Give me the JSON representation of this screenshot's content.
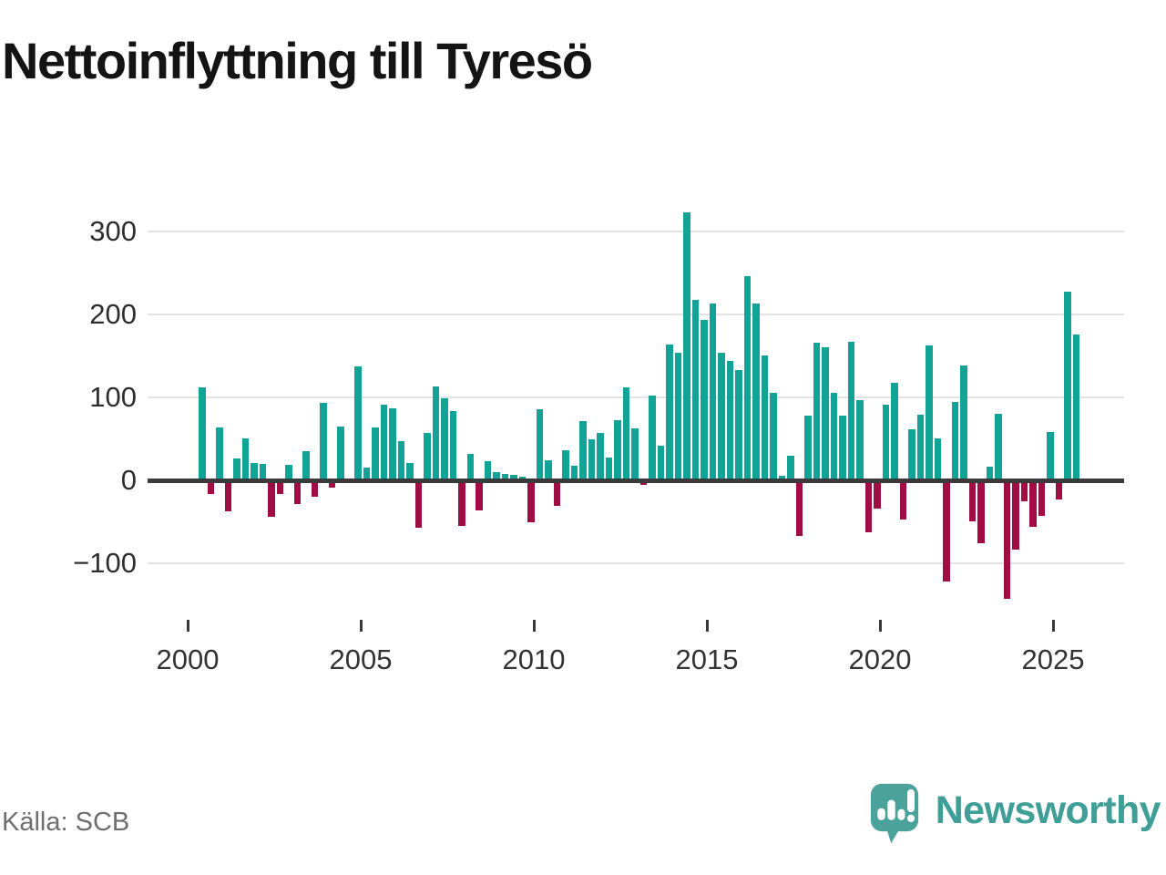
{
  "title": "Nettoinflyttning till Tyresö",
  "source": {
    "text": "Källa: SCB"
  },
  "branding": {
    "name": "Newsworthy"
  },
  "colors": {
    "positive_bar": "#10A396",
    "negative_bar": "#A00D45",
    "axis": "#3A3A3A",
    "grid": "#E3E3E3",
    "title": "#141414",
    "tick_label": "#333333",
    "y_label": "#2E2E2E",
    "source_text": "#6E6E6E",
    "brand_teal": "#3F9E96",
    "brand_icon_teal": "#4AA29B"
  },
  "chart_data": {
    "type": "bar",
    "title": "Nettoinflyttning till Tyresö",
    "xlabel": "",
    "ylabel": "",
    "grid": true,
    "legend": false,
    "x_ticks": [
      2000,
      2005,
      2010,
      2015,
      2020,
      2025
    ],
    "x_tick_labels": [
      "2000",
      "2005",
      "2010",
      "2015",
      "2020",
      "2025"
    ],
    "y_ticks": [
      300,
      200,
      100,
      0,
      -100
    ],
    "y_tick_labels": [
      "300",
      "200",
      "100",
      "0",
      "−100"
    ],
    "ylim": [
      -160,
      345
    ],
    "point_format": [
      "quarter",
      "value"
    ],
    "points": [
      [
        "2000 Q2",
        112
      ],
      [
        "2000 Q3",
        -17
      ],
      [
        "2000 Q4",
        64
      ],
      [
        "2001 Q1",
        -37
      ],
      [
        "2001 Q2",
        26
      ],
      [
        "2001 Q3",
        51
      ],
      [
        "2001 Q4",
        21
      ],
      [
        "2002 Q1",
        20
      ],
      [
        "2002 Q2",
        -44
      ],
      [
        "2002 Q3",
        -17
      ],
      [
        "2002 Q4",
        19
      ],
      [
        "2003 Q1",
        -29
      ],
      [
        "2003 Q2",
        35
      ],
      [
        "2003 Q3",
        -20
      ],
      [
        "2003 Q4",
        93
      ],
      [
        "2004 Q1",
        -9
      ],
      [
        "2004 Q2",
        65
      ],
      [
        "2004 Q3",
        0
      ],
      [
        "2004 Q4",
        137
      ],
      [
        "2005 Q1",
        15
      ],
      [
        "2005 Q2",
        64
      ],
      [
        "2005 Q3",
        91
      ],
      [
        "2005 Q4",
        87
      ],
      [
        "2006 Q1",
        47
      ],
      [
        "2006 Q2",
        21
      ],
      [
        "2006 Q3",
        -57
      ],
      [
        "2006 Q4",
        57
      ],
      [
        "2007 Q1",
        113
      ],
      [
        "2007 Q2",
        99
      ],
      [
        "2007 Q3",
        84
      ],
      [
        "2007 Q4",
        -55
      ],
      [
        "2008 Q1",
        32
      ],
      [
        "2008 Q2",
        -36
      ],
      [
        "2008 Q3",
        23
      ],
      [
        "2008 Q4",
        10
      ],
      [
        "2009 Q1",
        8
      ],
      [
        "2009 Q2",
        7
      ],
      [
        "2009 Q3",
        4
      ],
      [
        "2009 Q4",
        -51
      ],
      [
        "2010 Q1",
        86
      ],
      [
        "2010 Q2",
        24
      ],
      [
        "2010 Q3",
        -31
      ],
      [
        "2010 Q4",
        36
      ],
      [
        "2011 Q1",
        18
      ],
      [
        "2011 Q2",
        71
      ],
      [
        "2011 Q3",
        50
      ],
      [
        "2011 Q4",
        57
      ],
      [
        "2012 Q1",
        27
      ],
      [
        "2012 Q2",
        72
      ],
      [
        "2012 Q3",
        112
      ],
      [
        "2012 Q4",
        63
      ],
      [
        "2013 Q1",
        -6
      ],
      [
        "2013 Q2",
        102
      ],
      [
        "2013 Q3",
        42
      ],
      [
        "2013 Q4",
        164
      ],
      [
        "2014 Q1",
        154
      ],
      [
        "2014 Q2",
        323
      ],
      [
        "2014 Q3",
        218
      ],
      [
        "2014 Q4",
        193
      ],
      [
        "2015 Q1",
        213
      ],
      [
        "2015 Q2",
        154
      ],
      [
        "2015 Q3",
        144
      ],
      [
        "2015 Q4",
        133
      ],
      [
        "2016 Q1",
        246
      ],
      [
        "2016 Q2",
        213
      ],
      [
        "2016 Q3",
        151
      ],
      [
        "2016 Q4",
        106
      ],
      [
        "2017 Q1",
        6
      ],
      [
        "2017 Q2",
        30
      ],
      [
        "2017 Q3",
        -67
      ],
      [
        "2017 Q4",
        78
      ],
      [
        "2018 Q1",
        166
      ],
      [
        "2018 Q2",
        160
      ],
      [
        "2018 Q3",
        106
      ],
      [
        "2018 Q4",
        78
      ],
      [
        "2019 Q1",
        167
      ],
      [
        "2019 Q2",
        97
      ],
      [
        "2019 Q3",
        -63
      ],
      [
        "2019 Q4",
        -34
      ],
      [
        "2020 Q1",
        91
      ],
      [
        "2020 Q2",
        118
      ],
      [
        "2020 Q3",
        -47
      ],
      [
        "2020 Q4",
        61
      ],
      [
        "2021 Q1",
        79
      ],
      [
        "2021 Q2",
        163
      ],
      [
        "2021 Q3",
        51
      ],
      [
        "2021 Q4",
        -122
      ],
      [
        "2022 Q1",
        94
      ],
      [
        "2022 Q2",
        138
      ],
      [
        "2022 Q3",
        -49
      ],
      [
        "2022 Q4",
        -76
      ],
      [
        "2023 Q1",
        16
      ],
      [
        "2023 Q2",
        80
      ],
      [
        "2023 Q3",
        -143
      ],
      [
        "2023 Q4",
        -83
      ],
      [
        "2024 Q1",
        -25
      ],
      [
        "2024 Q2",
        -56
      ],
      [
        "2024 Q3",
        -43
      ],
      [
        "2024 Q4",
        58
      ],
      [
        "2025 Q1",
        -23
      ],
      [
        "2025 Q2",
        228
      ],
      [
        "2025 Q3",
        176
      ]
    ]
  }
}
